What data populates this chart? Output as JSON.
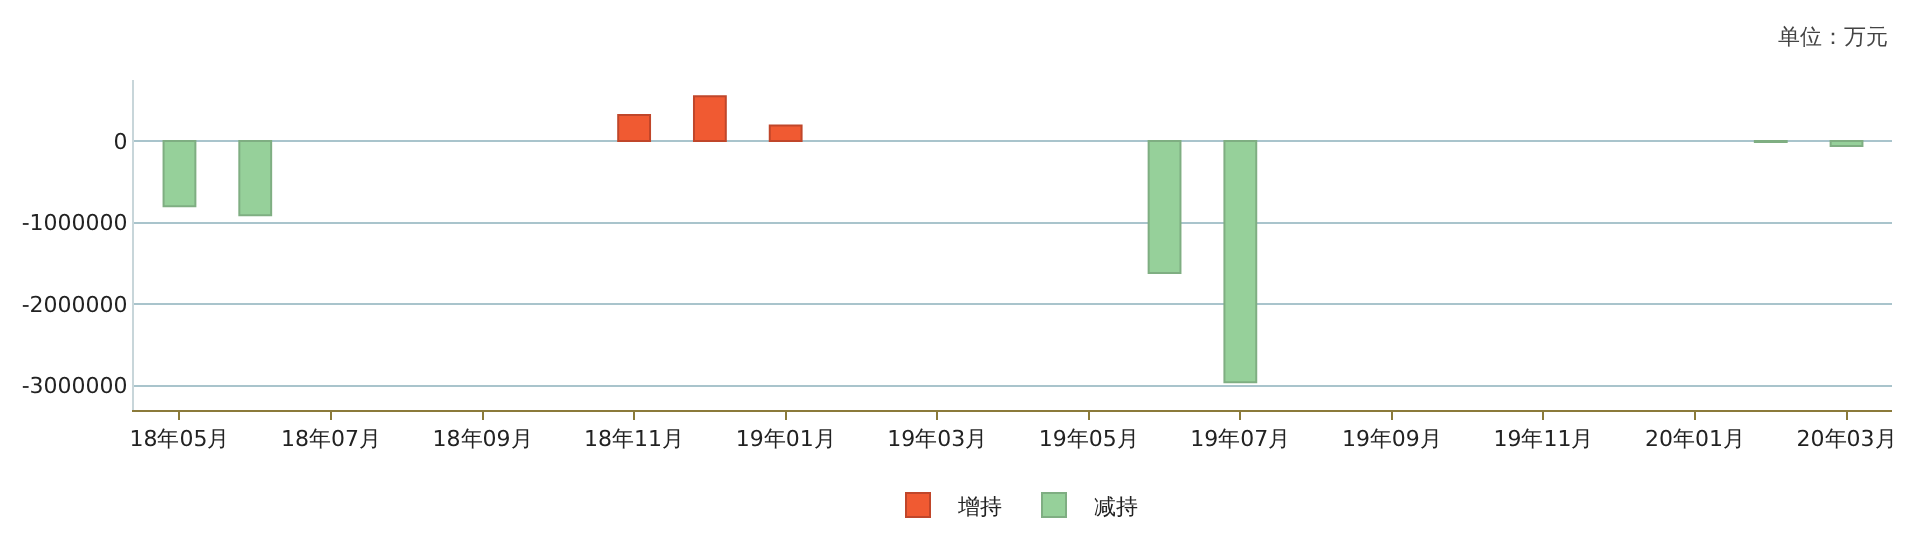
{
  "chart_data": {
    "type": "bar",
    "annotations": [
      "单位：万元"
    ],
    "categories": [
      "18年05月",
      null,
      "18年07月",
      null,
      "18年09月",
      null,
      "18年11月",
      null,
      "19年01月",
      null,
      "19年03月",
      null,
      "19年05月",
      null,
      "19年07月",
      null,
      "19年09月",
      null,
      "19年11月",
      null,
      "20年01月",
      null,
      "20年03月"
    ],
    "series": [
      {
        "name": "增持",
        "color": "#f05a32",
        "values": [
          null,
          null,
          null,
          null,
          null,
          null,
          320000,
          550000,
          190000,
          null,
          null,
          null,
          null,
          null,
          null,
          null,
          null,
          null,
          null,
          null,
          null,
          null,
          null
        ]
      },
      {
        "name": "减持",
        "color": "#96d09a",
        "values": [
          -800000,
          -910000,
          null,
          null,
          null,
          null,
          null,
          null,
          null,
          null,
          null,
          null,
          null,
          -1620000,
          -2960000,
          null,
          null,
          null,
          null,
          null,
          null,
          -10000,
          -60000
        ]
      }
    ],
    "ylim": [
      -3300000,
      750000
    ],
    "yticks": [
      -3000000,
      -2000000,
      -1000000,
      0
    ],
    "grid": "y",
    "legend": "bottom"
  }
}
